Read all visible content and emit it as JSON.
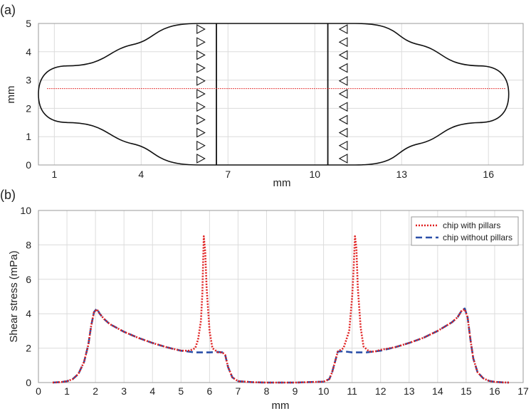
{
  "chart_data": [
    {
      "type": "diagram",
      "panel_label": "(a)",
      "xlabel": "mm",
      "ylabel": "mm",
      "xticks": [
        1,
        4,
        7,
        10,
        13,
        16
      ],
      "yticks": [
        0,
        1,
        2,
        3,
        4,
        5
      ],
      "xlim": [
        0.45,
        17.2
      ],
      "ylim": [
        0,
        5
      ],
      "grid": true,
      "channel_outline": {
        "length_range": [
          0.45,
          16.7
        ],
        "central_width": [
          0,
          5
        ],
        "inlet_width": [
          1.5,
          3.5
        ],
        "taper_start": [
          1.4,
          15.8
        ],
        "taper_end": [
          6.0,
          11.4
        ],
        "end_radius": 1.0
      },
      "walls_x": [
        6.6,
        10.45
      ],
      "pillar_rows": [
        {
          "x": 6.05,
          "direction": "right",
          "count": 11
        },
        {
          "x": 11.0,
          "direction": "left",
          "count": 11
        }
      ],
      "centerline": {
        "y": 2.7,
        "x_range": [
          0.75,
          16.6
        ],
        "color": "#e02020"
      },
      "colors": {
        "outline": "#111111",
        "pillars": "#111111",
        "grid": "#dcdcdc"
      }
    },
    {
      "type": "line",
      "panel_label": "(b)",
      "xlabel": "mm",
      "ylabel": "Shear stress (mPa)",
      "xticks": [
        0,
        1,
        2,
        3,
        4,
        5,
        6,
        7,
        8,
        9,
        10,
        11,
        12,
        13,
        14,
        15,
        16,
        17
      ],
      "yticks": [
        0,
        2,
        4,
        6,
        8,
        10
      ],
      "xlim": [
        0,
        17
      ],
      "ylim": [
        0,
        10
      ],
      "grid": true,
      "legend_position": "top-right",
      "series": [
        {
          "name": "chip with pillars",
          "color": "#e02020",
          "style": "dotted",
          "x": [
            0.5,
            0.8,
            1.0,
            1.2,
            1.4,
            1.6,
            1.75,
            1.85,
            1.95,
            2.05,
            2.15,
            2.3,
            2.5,
            3.0,
            3.5,
            4.0,
            4.5,
            5.0,
            5.3,
            5.5,
            5.6,
            5.7,
            5.75,
            5.8,
            5.85,
            5.9,
            6.0,
            6.1,
            6.3,
            6.45,
            6.55,
            6.65,
            6.8,
            7.0,
            7.5,
            8.0,
            9.0,
            10.0,
            10.2,
            10.3,
            10.4,
            10.5,
            10.7,
            10.9,
            11.0,
            11.05,
            11.1,
            11.15,
            11.2,
            11.3,
            11.4,
            11.6,
            11.8,
            12.0,
            12.5,
            13.0,
            13.5,
            14.0,
            14.5,
            14.7,
            14.85,
            14.95,
            15.05,
            15.15,
            15.25,
            15.4,
            15.6,
            15.8,
            16.0,
            16.3,
            16.5
          ],
          "y": [
            0.0,
            0.03,
            0.08,
            0.2,
            0.5,
            1.2,
            2.2,
            3.3,
            4.1,
            4.25,
            4.0,
            3.7,
            3.4,
            2.95,
            2.6,
            2.3,
            2.05,
            1.85,
            1.85,
            2.0,
            2.5,
            3.6,
            5.2,
            8.5,
            7.6,
            5.5,
            3.0,
            2.0,
            1.75,
            1.75,
            1.6,
            0.9,
            0.3,
            0.08,
            0.02,
            0.0,
            0.0,
            0.05,
            0.2,
            0.6,
            1.2,
            1.8,
            2.0,
            3.0,
            4.9,
            6.5,
            8.5,
            7.8,
            5.5,
            3.2,
            2.1,
            1.8,
            1.8,
            1.9,
            2.05,
            2.3,
            2.6,
            3.0,
            3.5,
            3.8,
            4.2,
            4.25,
            3.8,
            2.5,
            1.4,
            0.6,
            0.25,
            0.1,
            0.04,
            0.01,
            0.0
          ]
        },
        {
          "name": "chip without pillars",
          "color": "#2a4fa8",
          "style": "dashed",
          "x": [
            0.5,
            0.8,
            1.0,
            1.2,
            1.4,
            1.6,
            1.75,
            1.85,
            1.95,
            2.05,
            2.15,
            2.3,
            2.5,
            3.0,
            3.5,
            4.0,
            4.5,
            5.0,
            5.5,
            6.0,
            6.3,
            6.45,
            6.55,
            6.65,
            6.8,
            7.0,
            7.5,
            8.0,
            9.0,
            10.0,
            10.2,
            10.3,
            10.4,
            10.5,
            10.7,
            11.0,
            11.5,
            12.0,
            12.5,
            13.0,
            13.5,
            14.0,
            14.5,
            14.7,
            14.85,
            14.95,
            15.05,
            15.15,
            15.25,
            15.4,
            15.6,
            15.8,
            16.0,
            16.3,
            16.5
          ],
          "y": [
            0.0,
            0.03,
            0.08,
            0.2,
            0.5,
            1.2,
            2.2,
            3.3,
            4.1,
            4.3,
            4.0,
            3.7,
            3.4,
            2.95,
            2.6,
            2.3,
            2.05,
            1.85,
            1.75,
            1.75,
            1.78,
            1.75,
            1.6,
            0.9,
            0.3,
            0.08,
            0.02,
            0.0,
            0.0,
            0.05,
            0.2,
            0.6,
            1.2,
            1.8,
            1.82,
            1.75,
            1.75,
            1.85,
            2.05,
            2.3,
            2.6,
            3.0,
            3.5,
            3.8,
            4.2,
            4.3,
            3.8,
            2.5,
            1.4,
            0.6,
            0.25,
            0.1,
            0.04,
            0.01,
            0.0
          ]
        }
      ]
    }
  ]
}
